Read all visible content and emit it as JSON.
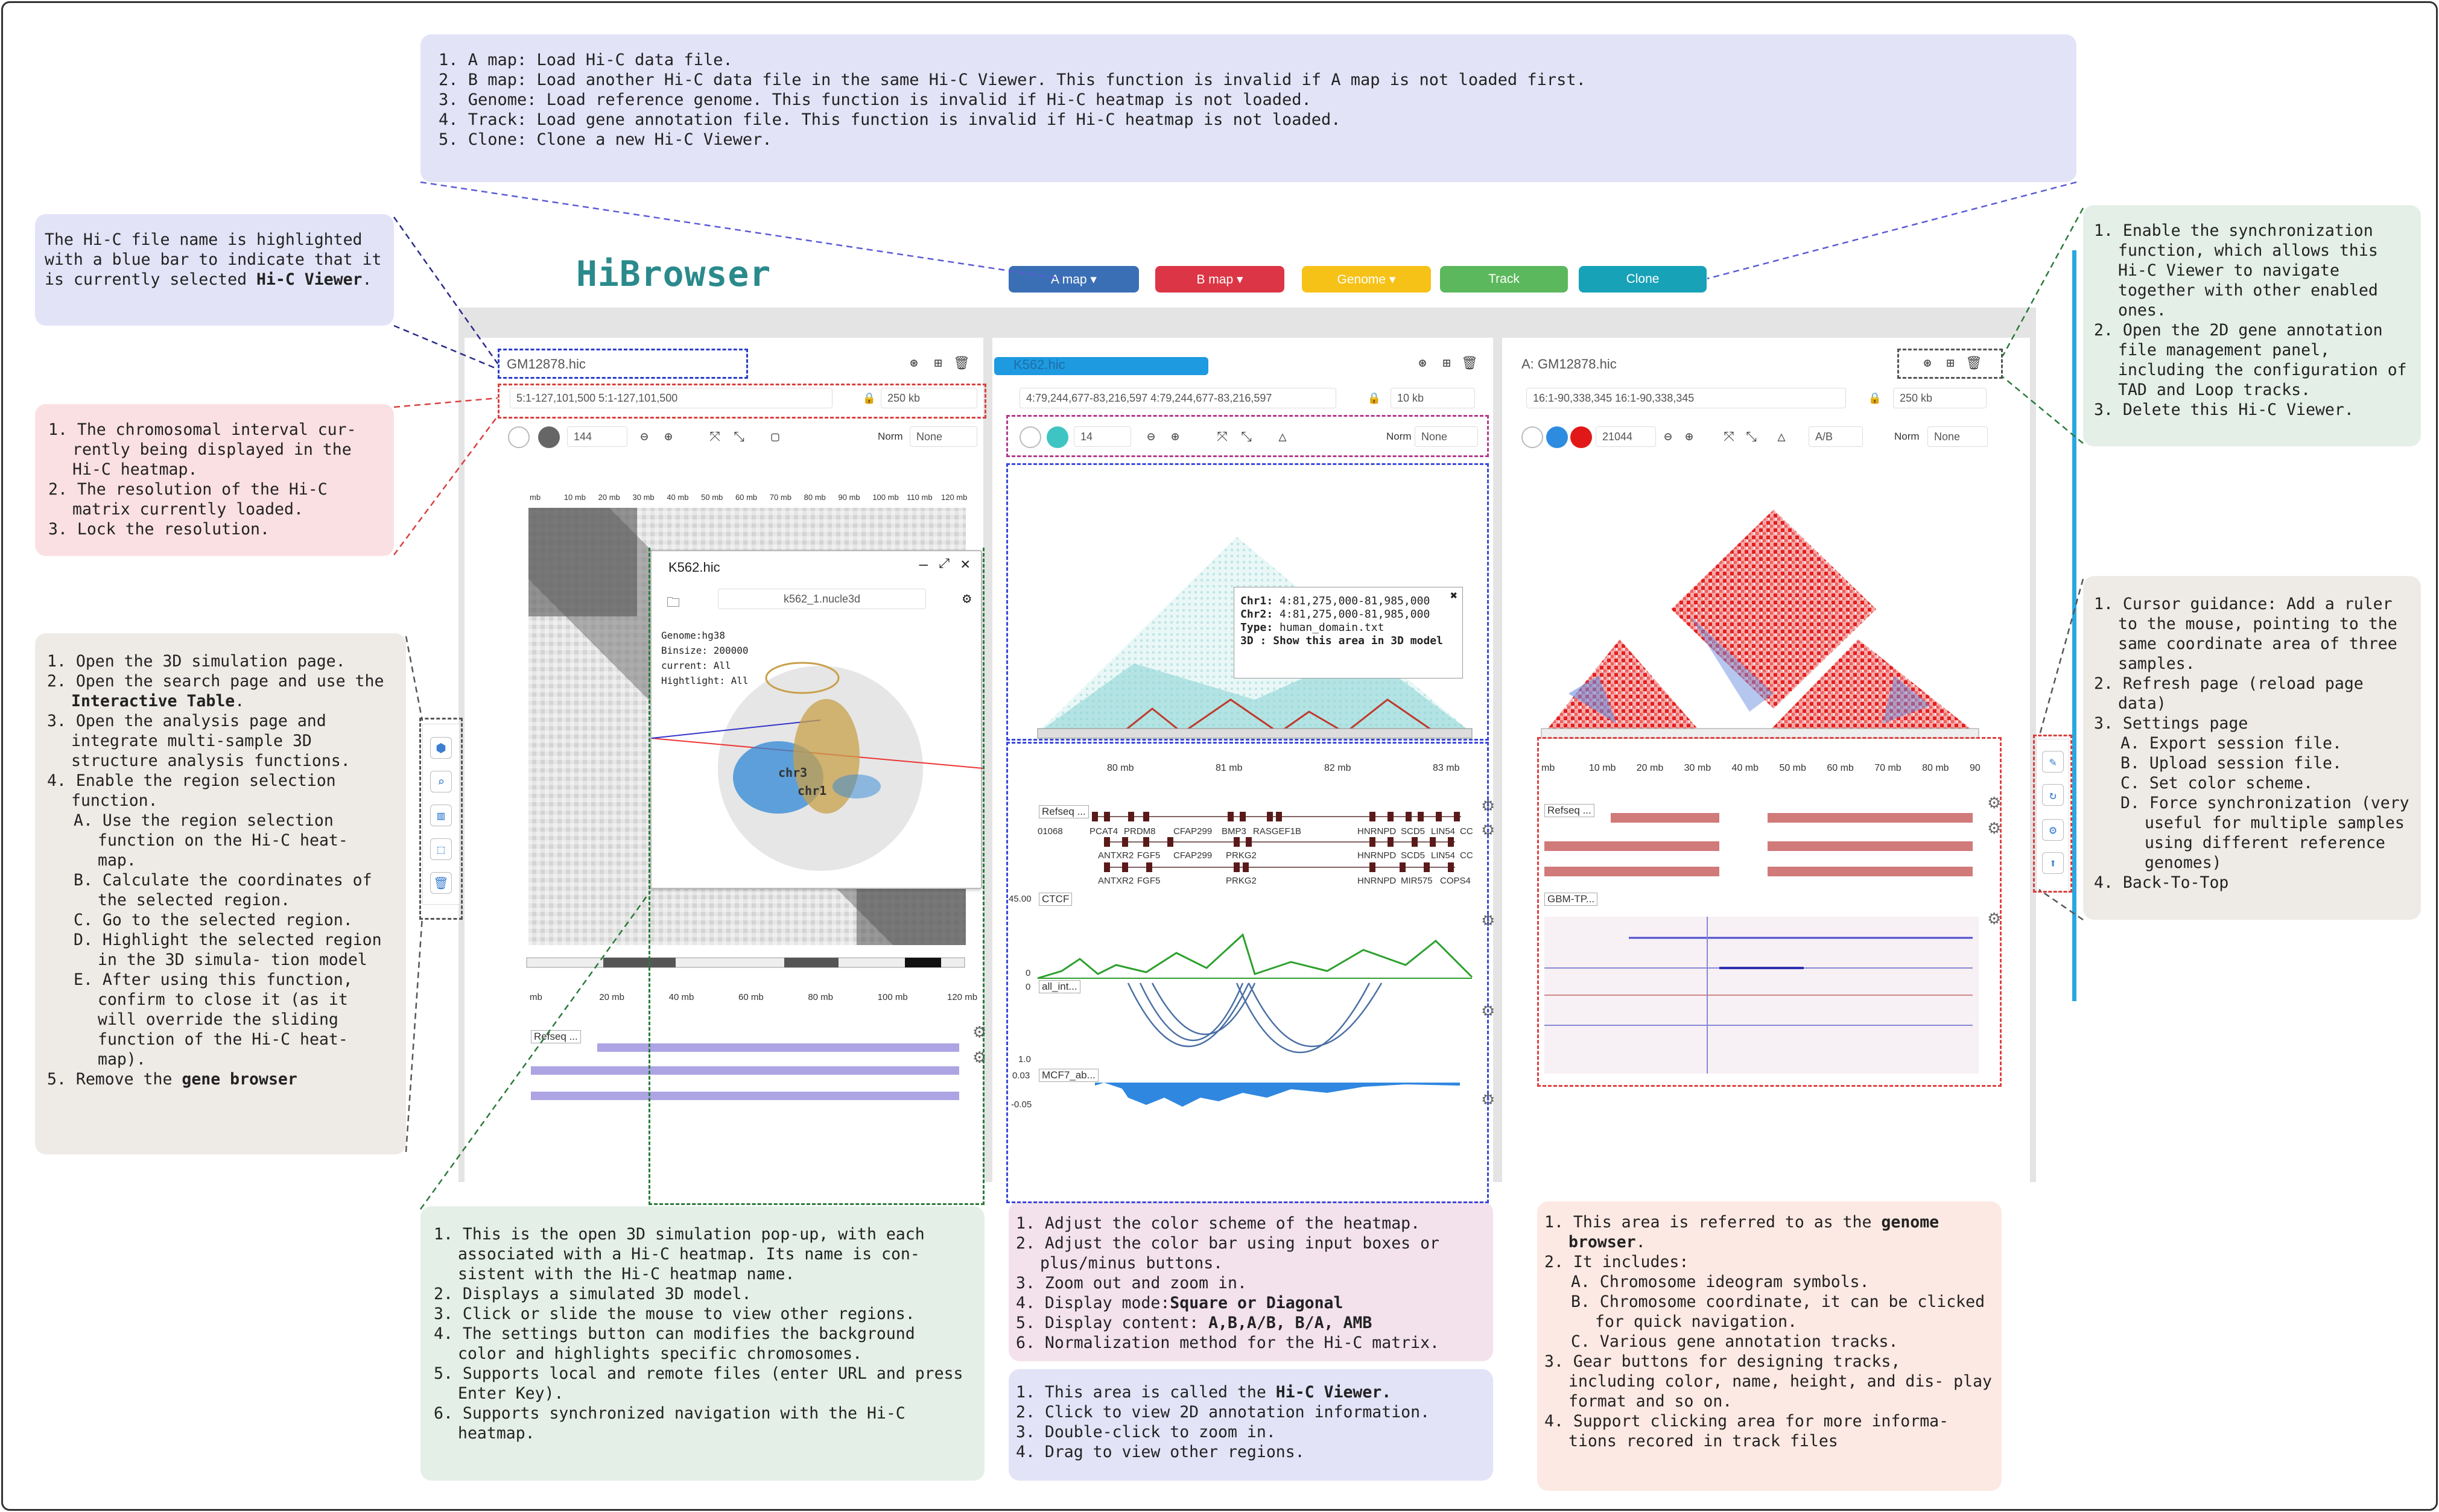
{
  "app": {
    "logo": "HiBrowser"
  },
  "toolbar": {
    "a_map": "A map ▾",
    "b_map": "B map ▾",
    "genome": "Genome ▾",
    "track": "Track",
    "clone": "Clone"
  },
  "colors": {
    "a_map": "#3a6fb5",
    "b_map": "#dc3545",
    "genome": "#f7c217",
    "track": "#5cb85c",
    "clone": "#17a2b8",
    "accent": "#2a8a8c"
  },
  "viewers": [
    {
      "file": "GM12878.hic",
      "locus": "5:1-127,101,500 5:1-127,101,500",
      "resolution": "250 kb",
      "colorval": "144",
      "norm_label": "Norm",
      "norm": "None",
      "refseq": "Refseq ..."
    },
    {
      "file": "K562.hic",
      "locus": "4:79,244,677-83,216,597 4:79,244,677-83,216,597",
      "resolution": "10 kb",
      "colorval": "14",
      "norm_label": "Norm",
      "norm": "None",
      "tracks": [
        "Refseq ...",
        "CTCF",
        "all_int...",
        "MCF7_ab..."
      ]
    },
    {
      "file": "A: GM12878.hic",
      "locus": "16:1-90,338,345 16:1-90,338,345",
      "resolution": "250 kb",
      "colorval": "21044",
      "mode": "A/B",
      "norm_label": "Norm",
      "norm": "None",
      "tracks": [
        "Refseq ...",
        "GBM-TP..."
      ]
    }
  ],
  "axis1": [
    "mb",
    "10 mb",
    "20 mb",
    "30 mb",
    "40 mb",
    "50 mb",
    "60 mb",
    "70 mb",
    "80 mb",
    "90 mb",
    "100 mb",
    "110 mb",
    "120 mb"
  ],
  "axis1_bottom": [
    "mb",
    "20 mb",
    "40 mb",
    "60 mb",
    "80 mb",
    "100 mb",
    "120 mb"
  ],
  "axis2": [
    "80 mb",
    "81 mb",
    "82 mb",
    "83 mb"
  ],
  "axis3": [
    "mb",
    "10 mb",
    "20 mb",
    "30 mb",
    "40 mb",
    "50 mb",
    "60 mb",
    "70 mb",
    "80 mb",
    "90"
  ],
  "genes2_row1": [
    "PCAT4",
    "PRDM8",
    "CFAP299",
    "BMP3",
    "RASGEF1B",
    "HNRNPD",
    "SCD5",
    "LIN54",
    "CC"
  ],
  "genes2_row2": [
    "ANTXR2",
    "FGF5",
    "CFAP299",
    "PRKG2",
    "HNRNPD",
    "SCD5",
    "LIN54",
    "CC"
  ],
  "genes2_row3": [
    "ANTXR2",
    "FGF5",
    "PRKG2",
    "HNRNPD",
    "MIR575",
    "COPS4"
  ],
  "gene2_first": "01068",
  "track_scales": {
    "ctcf_max": "45.00",
    "ctcf_min": "0",
    "int_max": "1.0",
    "int_min": "0",
    "mcf_max": "0.03",
    "mcf_min": "-0.05"
  },
  "popup": {
    "title": "K562.hic",
    "input": "k562_1.nucle3d",
    "genome": "Genome:hg38",
    "binsize": "Binsize: 200000",
    "current": "current: All",
    "highlight": "Hightlight: All",
    "chr_a": "chr3",
    "chr_b": "chr1"
  },
  "tooltip": {
    "chr1_k": "Chr1:",
    "chr1_v": "4:81,275,000-81,985,000",
    "chr2_k": "Chr2:",
    "chr2_v": "4:81,275,000-81,985,000",
    "type_k": "Type:",
    "type_v": "human_domain.txt",
    "d3_k": "3D :",
    "d3_v": "Show this area in 3D model"
  },
  "notes": {
    "top": [
      "1. A map: Load Hi-C data file.",
      "2. B map: Load another Hi-C data file in the same Hi-C Viewer. This function is invalid if A map is not loaded first.",
      "3. Genome: Load reference genome. This function is invalid if Hi-C heatmap is not loaded.",
      "4. Track: Load gene annotation file. This function is invalid if Hi-C heatmap is not loaded.",
      "5. Clone: Clone a new Hi-C Viewer."
    ],
    "filename_a": "The Hi-C file name is highlighted with a blue bar to indicate that it is currently selected ",
    "filename_b": "Hi-C Viewer",
    "filename_c": ".",
    "interval": [
      "1. The chromosomal interval cur- rently being displayed in the Hi-C heatmap.",
      "2. The resolution of the Hi-C matrix currently loaded.",
      "3. Lock the resolution."
    ],
    "left": {
      "i1": "1. Open the 3D simulation page.",
      "i2a": "2. Open the search page and use the ",
      "i2b": "Interactive Table",
      "i2c": ".",
      "i3": "3. Open the analysis page and integrate multi-sample 3D structure analysis functions.",
      "i4": "4. Enable the region selection function.",
      "i4a": "A. Use the region selection function on the Hi-C heat- map.",
      "i4b": "B. Calculate the coordinates of the selected region.",
      "i4c": "C. Go to the selected region.",
      "i4d": "D. Highlight the selected region in the 3D simula- tion model",
      "i4e": "E. After using this function, confirm to close it (as it will override the sliding function of the Hi-C heat- map).",
      "i5a": "5. Remove the ",
      "i5b": "gene browser"
    },
    "sync": [
      "1. Enable the synchronization function, which allows this Hi-C Viewer to navigate together with other enabled ones.",
      "2. Open the 2D gene annotation file management panel, including the configuration of TAD and Loop tracks.",
      "3. Delete this Hi-C Viewer."
    ],
    "cursor": {
      "i1": "1. Cursor guidance: Add a ruler to the mouse, pointing to the same coordinate area of three samples.",
      "i2": "2. Refresh page (reload page data)",
      "i3": "3. Settings page",
      "i3a": "A. Export session file.",
      "i3b": "B. Upload session file.",
      "i3c": "C. Set color scheme.",
      "i3d": "D. Force synchronization (very useful for multiple samples using different reference genomes)",
      "i4": "4. Back-To-Top"
    },
    "sim3d": [
      "1. This is the open 3D simulation pop-up, with each associated with a Hi-C heatmap. Its name is con- sistent with the Hi-C heatmap name.",
      "2. Displays a simulated 3D model.",
      "3. Click or slide the mouse to view other regions.",
      "4. The settings button can modifies the background color and highlights specific chromosomes.",
      "5. Supports local and remote files (enter URL and press Enter Key).",
      "6. Supports synchronized navigation with the Hi-C heatmap."
    ],
    "color": {
      "i1": "1. Adjust the color scheme of the heatmap.",
      "i2": "2. Adjust the color bar using input boxes or plus/minus buttons.",
      "i3": "3. Zoom out and zoom in.",
      "i4a": "4. Display mode:",
      "i4b": "Square or Diagonal",
      "i5a": "5. Display content: ",
      "i5b": "A,B,A/B, B/A, AMB",
      "i6": "6. Normalization method for the Hi-C matrix."
    },
    "viewer": {
      "i1a": "1. This area is called the ",
      "i1b": "Hi-C Viewer.",
      "i2": "2. Click to view 2D annotation information.",
      "i3": "3. Double-click to zoom in.",
      "i4": "4. Drag to view other regions."
    },
    "genome": {
      "i1a": "1. This area is referred to as the ",
      "i1b": "genome browser",
      "i1c": ".",
      "i2": "2. It includes:",
      "i2a": "A. Chromosome ideogram symbols.",
      "i2b": "B. Chromosome coordinate, it can be clicked for quick navigation.",
      "i2c": "C. Various gene annotation tracks.",
      "i3": "3. Gear buttons for designing tracks, including color, name, height, and dis- play format and so on.",
      "i4": "4. Support clicking area for more informa- tions recored in track files"
    }
  }
}
